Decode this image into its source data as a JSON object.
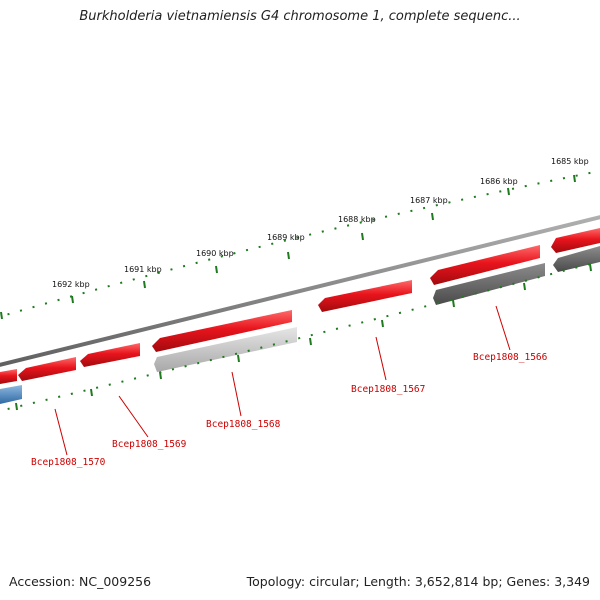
{
  "title": "Burkholderia vietnamiensis G4 chromosome 1, complete sequenc...",
  "footer": {
    "accession": "Accession: NC_009256",
    "summary": "Topology: circular; Length: 3,652,814 bp; Genes: 3,349"
  },
  "colors": {
    "forward_gene": "#e8141c",
    "reverse_gene_light": "#c8c8c8",
    "reverse_gene_dark": "#6e6e6e",
    "other_gene": "#4a7fb5",
    "backbone": "#8a8a8a",
    "tick": "#1f7a1f",
    "gene_label": "#cc0000"
  },
  "ruler": {
    "unit": "kbp",
    "labels": [
      "1685 kbp",
      "1686 kbp",
      "1687 kbp",
      "1688 kbp",
      "1689 kbp",
      "1690 kbp",
      "1691 kbp",
      "1692 kbp"
    ]
  },
  "genes": [
    {
      "label": "Bcep1808_1566",
      "labeled": true
    },
    {
      "label": "Bcep1808_1567",
      "labeled": true
    },
    {
      "label": "Bcep1808_1568",
      "labeled": true
    },
    {
      "label": "Bcep1808_1569",
      "labeled": true
    },
    {
      "label": "Bcep1808_1570",
      "labeled": true
    }
  ]
}
